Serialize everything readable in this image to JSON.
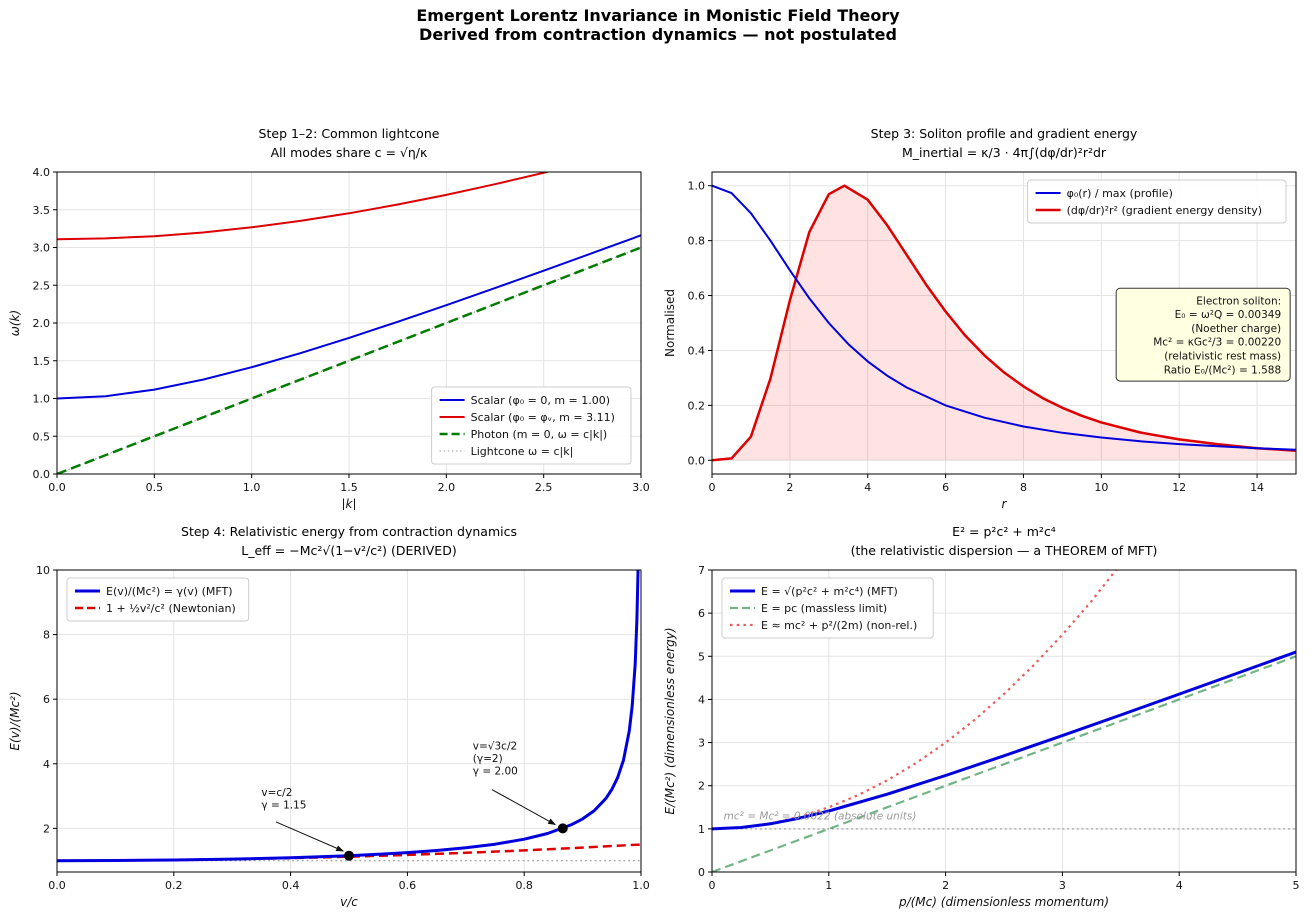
{
  "figure_title": {
    "line1": "Emergent Lorentz Invariance in Monistic Field Theory",
    "line2": "Derived from contraction dynamics — not postulated"
  },
  "palette": {
    "blue": "#0000dd",
    "red": "#dd0000",
    "green_dark": "#007d00",
    "green_soft": "rgba(40,140,70,0.65)",
    "red_soft": "rgba(235,60,60,0.85)",
    "grey": "#999999",
    "grid": "#e3e3e3",
    "info_box_bg": "#ffffe1"
  },
  "chart_data": [
    {
      "id": "lightcone",
      "type": "line",
      "title": [
        "Step 1–2: Common lightcone",
        "All modes share c = √η/κ"
      ],
      "xlabel": "|k|",
      "ylabel": "ω(k)",
      "xlim": [
        0,
        3
      ],
      "ylim": [
        0,
        4
      ],
      "grid": true,
      "xticks": [
        {
          "v": 0,
          "label": "0.0"
        },
        {
          "v": 0.5,
          "label": "0.5"
        },
        {
          "v": 1,
          "label": "1.0"
        },
        {
          "v": 1.5,
          "label": "1.5"
        },
        {
          "v": 2,
          "label": "2.0"
        },
        {
          "v": 2.5,
          "label": "2.5"
        },
        {
          "v": 3,
          "label": "3.0"
        }
      ],
      "yticks": [
        {
          "v": 0,
          "label": "0.0"
        },
        {
          "v": 0.5,
          "label": "0.5"
        },
        {
          "v": 1,
          "label": "1.0"
        },
        {
          "v": 1.5,
          "label": "1.5"
        },
        {
          "v": 2,
          "label": "2.0"
        },
        {
          "v": 2.5,
          "label": "2.5"
        },
        {
          "v": 3,
          "label": "3.0"
        },
        {
          "v": 3.5,
          "label": "3.5"
        },
        {
          "v": 4,
          "label": "4.0"
        }
      ],
      "series": [
        {
          "name": "lightcone-ref",
          "color": "#999999",
          "lw": 1,
          "dash": "1.5,2.6",
          "x": [
            0,
            3
          ],
          "y": [
            0,
            3
          ]
        },
        {
          "name": "photon",
          "color": "#007d00",
          "lw": 2.5,
          "dash": "10,5",
          "x": [
            0,
            3
          ],
          "y": [
            0,
            3
          ]
        },
        {
          "name": "scalar-m1",
          "color": "#0000dd",
          "lw": 2,
          "dash": null,
          "x": [
            0,
            0.25,
            0.5,
            0.75,
            1,
            1.25,
            1.5,
            1.75,
            2,
            2.25,
            2.5,
            2.75,
            3
          ],
          "y": [
            1.0,
            1.031,
            1.118,
            1.25,
            1.414,
            1.6,
            1.803,
            2.016,
            2.236,
            2.462,
            2.693,
            2.926,
            3.162
          ]
        },
        {
          "name": "scalar-m311",
          "color": "#dd0000",
          "lw": 2,
          "dash": null,
          "x": [
            0,
            0.25,
            0.5,
            0.75,
            1,
            1.25,
            1.5,
            1.75,
            2,
            2.25,
            2.5,
            2.52
          ],
          "y": [
            3.11,
            3.12,
            3.15,
            3.199,
            3.267,
            3.352,
            3.453,
            3.569,
            3.697,
            3.838,
            3.989,
            4.002
          ]
        }
      ],
      "legend": {
        "pos": "lower-right",
        "items": [
          {
            "label": "Scalar (φ₀ = 0, m = 1.00)",
            "color": "#0000dd",
            "lw": 2,
            "dash": null
          },
          {
            "label": "Scalar (φ₀ = φᵥ, m = 3.11)",
            "color": "#dd0000",
            "lw": 2,
            "dash": null
          },
          {
            "label": "Photon (m = 0, ω = c|k|)",
            "color": "#007d00",
            "lw": 2.5,
            "dash": "8,4"
          },
          {
            "label": "Lightcone ω = c|k|",
            "color": "#999999",
            "lw": 1,
            "dash": "1.5,2.6"
          }
        ]
      }
    },
    {
      "id": "soliton",
      "type": "line",
      "title": [
        "Step 3: Soliton profile and gradient energy",
        "M_inertial = κ/3 · 4π∫(dφ/dr)²r²dr"
      ],
      "xlabel": "r",
      "ylabel": "Normalised",
      "ylabel_style": "normal",
      "xlim": [
        0,
        15
      ],
      "ylim": [
        -0.05,
        1.05
      ],
      "grid": true,
      "xticks": [
        {
          "v": 0,
          "label": "0"
        },
        {
          "v": 2,
          "label": "2"
        },
        {
          "v": 4,
          "label": "4"
        },
        {
          "v": 6,
          "label": "6"
        },
        {
          "v": 8,
          "label": "8"
        },
        {
          "v": 10,
          "label": "10"
        },
        {
          "v": 12,
          "label": "12"
        },
        {
          "v": 14,
          "label": "14"
        }
      ],
      "yticks": [
        {
          "v": 0,
          "label": "0.0"
        },
        {
          "v": 0.2,
          "label": "0.2"
        },
        {
          "v": 0.4,
          "label": "0.4"
        },
        {
          "v": 0.6,
          "label": "0.6"
        },
        {
          "v": 0.8,
          "label": "0.8"
        },
        {
          "v": 1,
          "label": "1.0"
        }
      ],
      "series": [
        {
          "name": "gradient-energy",
          "color": "#dd0000",
          "lw": 2.5,
          "dash": null,
          "fill": "rgba(255,40,40,0.13)",
          "x": [
            0,
            0.5,
            1,
            1.5,
            2,
            2.5,
            3,
            3.4,
            4,
            4.5,
            5,
            5.5,
            6,
            6.5,
            7,
            7.5,
            8,
            8.5,
            9,
            9.5,
            10,
            11,
            12,
            13,
            14,
            15
          ],
          "y": [
            0,
            0.007,
            0.086,
            0.297,
            0.583,
            0.831,
            0.969,
            1.0,
            0.949,
            0.856,
            0.748,
            0.64,
            0.542,
            0.455,
            0.382,
            0.32,
            0.269,
            0.226,
            0.191,
            0.162,
            0.138,
            0.101,
            0.076,
            0.058,
            0.044,
            0.035
          ]
        },
        {
          "name": "profile",
          "color": "#0000dd",
          "lw": 2,
          "dash": null,
          "x": [
            0,
            0.5,
            1,
            1.5,
            2,
            2.5,
            3,
            3.5,
            4,
            4.5,
            5,
            6,
            7,
            8,
            9,
            10,
            11,
            12,
            13,
            14,
            15
          ],
          "y": [
            1.0,
            0.973,
            0.9,
            0.8,
            0.692,
            0.59,
            0.5,
            0.423,
            0.36,
            0.308,
            0.265,
            0.2,
            0.155,
            0.123,
            0.1,
            0.083,
            0.069,
            0.059,
            0.051,
            0.044,
            0.038
          ]
        }
      ],
      "legend": {
        "pos": "upper-right",
        "items": [
          {
            "label": "φ₀(r) / max (profile)",
            "color": "#0000dd",
            "lw": 2,
            "dash": null
          },
          {
            "label": "(dφ/dr)²r² (gradient energy density)",
            "color": "#dd0000",
            "lw": 2.5,
            "dash": null
          }
        ]
      },
      "info_box": {
        "fx": 0.99,
        "fy": 0.385,
        "lines": [
          "Electron soliton:",
          "E₀ = ω²Q = 0.00349",
          "(Noether charge)",
          "Mc² = κGc²/3 = 0.00220",
          "(relativistic rest mass)",
          "Ratio E₀/(Mc²) = 1.588"
        ]
      }
    },
    {
      "id": "relativistic-energy",
      "type": "line",
      "title": [
        "Step 4: Relativistic energy from contraction dynamics",
        "L_eff = −Mc²√(1−v²/c²)  (DERIVED)"
      ],
      "xlabel": "v/c",
      "ylabel": "E(v)/(Mc²)",
      "xlim": [
        0,
        1
      ],
      "ylim": [
        0.65,
        10
      ],
      "grid": true,
      "xticks": [
        {
          "v": 0,
          "label": "0.0"
        },
        {
          "v": 0.2,
          "label": "0.2"
        },
        {
          "v": 0.4,
          "label": "0.4"
        },
        {
          "v": 0.6,
          "label": "0.6"
        },
        {
          "v": 0.8,
          "label": "0.8"
        },
        {
          "v": 1,
          "label": "1.0"
        }
      ],
      "yticks": [
        {
          "v": 2,
          "label": "2"
        },
        {
          "v": 4,
          "label": "4"
        },
        {
          "v": 6,
          "label": "6"
        },
        {
          "v": 8,
          "label": "8"
        },
        {
          "v": 10,
          "label": "10"
        }
      ],
      "series": [
        {
          "name": "unity-ref",
          "color": "#888888",
          "lw": 1,
          "dash": "1.8,3",
          "x": [
            0,
            1
          ],
          "y": [
            1,
            1
          ]
        },
        {
          "name": "newtonian",
          "color": "#dd0000",
          "lw": 2.5,
          "dash": "9,5",
          "x": [
            0,
            0.1,
            0.2,
            0.3,
            0.4,
            0.5,
            0.6,
            0.7,
            0.8,
            0.9,
            1.0
          ],
          "y": [
            1.0,
            1.005,
            1.02,
            1.045,
            1.08,
            1.125,
            1.18,
            1.245,
            1.32,
            1.405,
            1.5
          ]
        },
        {
          "name": "gamma-mft",
          "color": "#0000dd",
          "lw": 3,
          "dash": null,
          "x": [
            0,
            0.1,
            0.2,
            0.3,
            0.4,
            0.5,
            0.55,
            0.6,
            0.65,
            0.7,
            0.75,
            0.8,
            0.84,
            0.88,
            0.9,
            0.92,
            0.94,
            0.95,
            0.96,
            0.97,
            0.98,
            0.985,
            0.99,
            0.993,
            0.9952
          ],
          "y": [
            1.0,
            1.005,
            1.021,
            1.048,
            1.091,
            1.155,
            1.197,
            1.25,
            1.316,
            1.4,
            1.512,
            1.667,
            1.843,
            2.107,
            2.294,
            2.551,
            2.931,
            3.203,
            3.571,
            4.113,
            5.025,
            5.795,
            7.089,
            8.472,
            10.2
          ]
        }
      ],
      "points": [
        {
          "x": 0.5,
          "y": 1.155
        },
        {
          "x": 0.866,
          "y": 2.0
        }
      ],
      "annotations": [
        {
          "lines": [
            "v=c/2",
            "γ = 1.15"
          ],
          "tx": 0.35,
          "ty": 3.0,
          "asx": 0.375,
          "asy": 2.2,
          "ax": 0.49,
          "ay": 1.3
        },
        {
          "lines": [
            "v=√3c/2",
            "(γ=2)",
            "γ = 2.00"
          ],
          "tx": 0.712,
          "ty": 4.45,
          "asx": 0.745,
          "asy": 3.2,
          "ax": 0.853,
          "ay": 2.12
        }
      ],
      "legend": {
        "pos": "upper-left",
        "items": [
          {
            "label": "E(v)/(Mc²) = γ(v) (MFT)",
            "color": "#0000dd",
            "lw": 3,
            "dash": null
          },
          {
            "label": "1 + ½v²/c² (Newtonian)",
            "color": "#dd0000",
            "lw": 2.5,
            "dash": "8,4"
          }
        ]
      }
    },
    {
      "id": "dispersion",
      "type": "line",
      "title": [
        "E² = p²c² + m²c⁴",
        "(the relativistic dispersion — a THEOREM of MFT)"
      ],
      "xlabel": "p/(Mc)  (dimensionless momentum)",
      "ylabel": "E/(Mc²)  (dimensionless energy)",
      "xlim": [
        0,
        5
      ],
      "ylim": [
        0,
        7
      ],
      "grid": true,
      "xticks": [
        {
          "v": 0,
          "label": "0"
        },
        {
          "v": 1,
          "label": "1"
        },
        {
          "v": 2,
          "label": "2"
        },
        {
          "v": 3,
          "label": "3"
        },
        {
          "v": 4,
          "label": "4"
        },
        {
          "v": 5,
          "label": "5"
        }
      ],
      "yticks": [
        {
          "v": 0,
          "label": "0"
        },
        {
          "v": 1,
          "label": "1"
        },
        {
          "v": 2,
          "label": "2"
        },
        {
          "v": 3,
          "label": "3"
        },
        {
          "v": 4,
          "label": "4"
        },
        {
          "v": 5,
          "label": "5"
        },
        {
          "v": 6,
          "label": "6"
        },
        {
          "v": 7,
          "label": "7"
        }
      ],
      "series": [
        {
          "name": "unity-ref",
          "color": "#888888",
          "lw": 1,
          "dash": "1.8,3",
          "x": [
            0,
            5
          ],
          "y": [
            1,
            1
          ]
        },
        {
          "name": "massless",
          "color": "rgba(40,140,70,0.65)",
          "lw": 2.2,
          "dash": "9,5",
          "x": [
            0,
            5
          ],
          "y": [
            0,
            5
          ]
        },
        {
          "name": "nonrelativistic",
          "color": "rgba(235,60,60,0.85)",
          "lw": 2.2,
          "dash": "2.5,4.2",
          "x": [
            0,
            0.25,
            0.5,
            0.75,
            1,
            1.25,
            1.5,
            1.75,
            2,
            2.25,
            2.5,
            2.75,
            3,
            3.25,
            3.464
          ],
          "y": [
            1,
            1.031,
            1.125,
            1.281,
            1.5,
            1.781,
            2.125,
            2.531,
            3,
            3.531,
            4.125,
            4.781,
            5.5,
            6.281,
            7.02
          ]
        },
        {
          "name": "mft-dispersion",
          "color": "#0000dd",
          "lw": 3,
          "dash": null,
          "x": [
            0,
            0.25,
            0.5,
            0.75,
            1,
            1.5,
            2,
            2.5,
            3,
            3.5,
            4,
            4.5,
            5
          ],
          "y": [
            1.0,
            1.031,
            1.118,
            1.25,
            1.414,
            1.803,
            2.236,
            2.693,
            3.162,
            3.64,
            4.123,
            4.61,
            5.099
          ]
        }
      ],
      "annotations": [
        {
          "lines": [
            "mc² = Mc² = 0.0022 (absolute units)"
          ],
          "tx": 0.1,
          "ty": 1.22,
          "color": "#9a9a9a",
          "italic": true
        }
      ],
      "legend": {
        "pos": "upper-left",
        "items": [
          {
            "label": "E = √(p²c² + m²c⁴)  (MFT)",
            "color": "#0000dd",
            "lw": 3,
            "dash": null
          },
          {
            "label": "E = pc (massless limit)",
            "color": "rgba(40,140,70,0.65)",
            "lw": 2.2,
            "dash": "8,4"
          },
          {
            "label": "E ≈ mc² + p²/(2m) (non-rel.)",
            "color": "rgba(235,60,60,0.85)",
            "lw": 2.2,
            "dash": "2.5,4.2"
          }
        ]
      }
    }
  ]
}
